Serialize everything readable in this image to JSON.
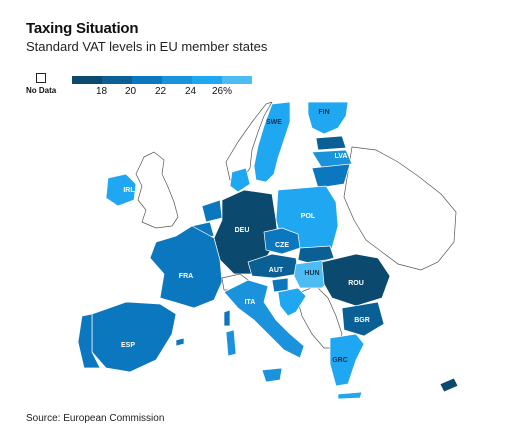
{
  "header": {
    "title": "Taxing Situation",
    "subtitle": "Standard VAT levels in EU member states"
  },
  "legend": {
    "no_data_label": "No Data",
    "ticks": [
      "18",
      "20",
      "22",
      "24",
      "26%"
    ],
    "colors": [
      "#0b4a6e",
      "#0a5f94",
      "#0b77be",
      "#1a92dc",
      "#20a7f2",
      "#4dbcf5"
    ]
  },
  "map": {
    "countries": [
      {
        "code": "SWE",
        "color": "#20a7f2"
      },
      {
        "code": "FIN",
        "color": "#20a7f2"
      },
      {
        "code": "LVA",
        "color": "#1a92dc"
      },
      {
        "code": "IRL",
        "color": "#20a7f2"
      },
      {
        "code": "POL",
        "color": "#20a7f2"
      },
      {
        "code": "DEU",
        "color": "#0b4a6e"
      },
      {
        "code": "CZE",
        "color": "#0b77be"
      },
      {
        "code": "FRA",
        "color": "#0b77be"
      },
      {
        "code": "AUT",
        "color": "#0a5f94"
      },
      {
        "code": "HUN",
        "color": "#4dbcf5"
      },
      {
        "code": "ROU",
        "color": "#0b4a6e"
      },
      {
        "code": "ITA",
        "color": "#1a92dc"
      },
      {
        "code": "BGR",
        "color": "#0a5f94"
      },
      {
        "code": "ESP",
        "color": "#0b77be"
      },
      {
        "code": "GRC",
        "color": "#20a7f2"
      }
    ]
  },
  "footer": {
    "source": "Source: European Commission"
  }
}
